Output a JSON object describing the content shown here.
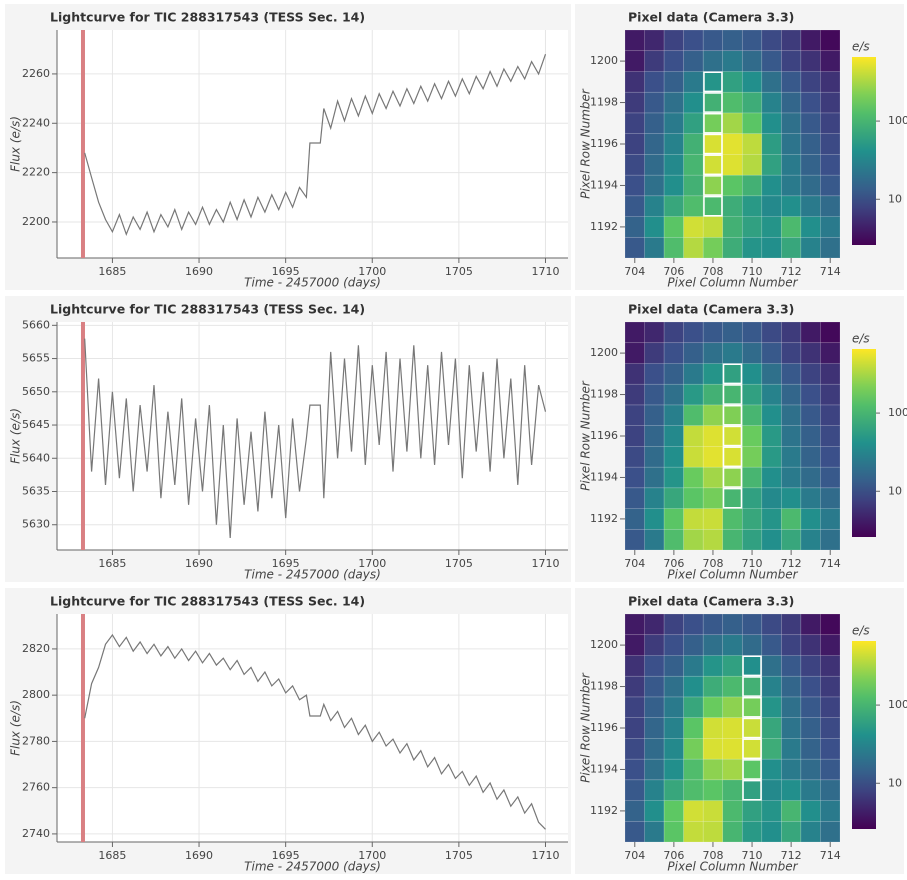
{
  "chart_data": [
    {
      "type": "line",
      "title": "Lightcurve for TIC 288317543 (TESS Sec. 14)",
      "xlabel": "Time - 2457000 (days)",
      "ylabel": "Flux (e/s)",
      "color": "#777777",
      "grid": true,
      "vline": 1683.3,
      "vline_color": "#d98083",
      "xlim": [
        1681.8,
        1711.3
      ],
      "xticks": [
        1685,
        1690,
        1695,
        1700,
        1705,
        1710
      ],
      "ylim": [
        2185.4,
        2277.8
      ],
      "yticks": [
        2200,
        2220,
        2240,
        2260
      ],
      "x": [
        1683.4,
        1683.8,
        1684.2,
        1684.6,
        1685.0,
        1685.4,
        1685.8,
        1686.2,
        1686.6,
        1687.0,
        1687.4,
        1687.8,
        1688.2,
        1688.6,
        1689.0,
        1689.4,
        1689.8,
        1690.2,
        1690.6,
        1691.0,
        1691.4,
        1691.8,
        1692.2,
        1692.6,
        1693.0,
        1693.4,
        1693.8,
        1694.2,
        1694.6,
        1695.0,
        1695.4,
        1695.8,
        1696.2,
        1696.4,
        1697.0,
        1697.2,
        1697.6,
        1698.0,
        1698.4,
        1698.8,
        1699.2,
        1699.6,
        1700.0,
        1700.4,
        1700.8,
        1701.2,
        1701.6,
        1702.0,
        1702.4,
        1702.8,
        1703.2,
        1703.6,
        1704.0,
        1704.4,
        1704.8,
        1705.2,
        1705.6,
        1706.0,
        1706.4,
        1706.8,
        1707.2,
        1707.6,
        1708.0,
        1708.4,
        1708.8,
        1709.2,
        1709.6,
        1710.0
      ],
      "values": [
        2228,
        2218,
        2208,
        2201,
        2196,
        2203,
        2195,
        2202,
        2197,
        2204,
        2196,
        2203,
        2198,
        2205,
        2197,
        2204,
        2199,
        2206,
        2199,
        2205,
        2200,
        2208,
        2201,
        2209,
        2202,
        2210,
        2204,
        2211,
        2205,
        2212,
        2206,
        2214,
        2210,
        2232,
        2232,
        2246,
        2238,
        2249,
        2241,
        2250,
        2243,
        2251,
        2244,
        2252,
        2246,
        2253,
        2247,
        2254,
        2248,
        2255,
        2249,
        2256,
        2250,
        2257,
        2251,
        2258,
        2252,
        2259,
        2254,
        2261,
        2255,
        2262,
        2257,
        2263,
        2258,
        2265,
        2260,
        2268
      ]
    },
    {
      "type": "heatmap",
      "title": "Pixel data (Camera 3.3)",
      "xlabel": "Pixel Column Number",
      "ylabel": "Pixel Row Number",
      "colorbar_label": "e/s",
      "colormap": "viridis",
      "log_color": true,
      "xlim": [
        703.5,
        714.5
      ],
      "xticks": [
        704,
        706,
        708,
        710,
        712,
        714
      ],
      "ylim": [
        1190.5,
        1201.5
      ],
      "yticks": [
        1192,
        1194,
        1196,
        1198,
        1200
      ],
      "clim": [
        2.6,
        660
      ],
      "cticks": [
        10,
        100
      ],
      "x": [
        704,
        705,
        706,
        707,
        708,
        709,
        710,
        711,
        712,
        713,
        714
      ],
      "y": [
        1191,
        1192,
        1193,
        1194,
        1195,
        1196,
        1197,
        1198,
        1199,
        1200,
        1201
      ],
      "z": [
        [
          12,
          25,
          120,
          350,
          200,
          80,
          45,
          40,
          70,
          30,
          20
        ],
        [
          15,
          40,
          150,
          450,
          400,
          90,
          60,
          45,
          110,
          40,
          25
        ],
        [
          12,
          30,
          70,
          120,
          110,
          80,
          50,
          35,
          40,
          25,
          18
        ],
        [
          10,
          20,
          40,
          90,
          250,
          150,
          90,
          40,
          25,
          18,
          12
        ],
        [
          9,
          18,
          35,
          100,
          450,
          500,
          350,
          60,
          25,
          15,
          10
        ],
        [
          8,
          16,
          30,
          90,
          480,
          520,
          380,
          55,
          22,
          14,
          9
        ],
        [
          8,
          14,
          25,
          60,
          200,
          300,
          150,
          40,
          20,
          12,
          8
        ],
        [
          7,
          12,
          20,
          40,
          90,
          120,
          80,
          30,
          16,
          10,
          7
        ],
        [
          6,
          10,
          14,
          25,
          45,
          60,
          40,
          20,
          12,
          8,
          6
        ],
        [
          4,
          7,
          10,
          14,
          20,
          25,
          18,
          12,
          8,
          6,
          4
        ],
        [
          4,
          5,
          8,
          10,
          12,
          14,
          12,
          9,
          7,
          4,
          3
        ]
      ],
      "aperture": {
        "x": 708,
        "y": [
          1193,
          1194,
          1195,
          1196,
          1197,
          1198,
          1199
        ]
      }
    },
    {
      "type": "line",
      "title": "Lightcurve for TIC 288317543 (TESS Sec. 14)",
      "xlabel": "Time - 2457000 (days)",
      "ylabel": "Flux (e/s)",
      "color": "#777777",
      "grid": true,
      "vline": 1683.3,
      "vline_color": "#d98083",
      "xlim": [
        1681.8,
        1711.3
      ],
      "xticks": [
        1685,
        1690,
        1695,
        1700,
        1705,
        1710
      ],
      "ylim": [
        5626.2,
        5660.5
      ],
      "yticks": [
        5630,
        5635,
        5640,
        5645,
        5650,
        5655,
        5660
      ],
      "x": [
        1683.4,
        1683.8,
        1684.2,
        1684.6,
        1685.0,
        1685.4,
        1685.8,
        1686.2,
        1686.6,
        1687.0,
        1687.4,
        1687.8,
        1688.2,
        1688.6,
        1689.0,
        1689.4,
        1689.8,
        1690.2,
        1690.6,
        1691.0,
        1691.4,
        1691.8,
        1692.2,
        1692.6,
        1693.0,
        1693.4,
        1693.8,
        1694.2,
        1694.6,
        1695.0,
        1695.4,
        1695.8,
        1696.2,
        1696.4,
        1697.0,
        1697.2,
        1697.6,
        1698.0,
        1698.4,
        1698.8,
        1699.2,
        1699.6,
        1700.0,
        1700.4,
        1700.8,
        1701.2,
        1701.6,
        1702.0,
        1702.4,
        1702.8,
        1703.2,
        1703.6,
        1704.0,
        1704.4,
        1704.8,
        1705.2,
        1705.6,
        1706.0,
        1706.4,
        1706.8,
        1707.2,
        1707.6,
        1708.0,
        1708.4,
        1708.8,
        1709.2,
        1709.6,
        1710.0
      ],
      "values": [
        5658,
        5638,
        5652,
        5636,
        5650,
        5637,
        5649,
        5635,
        5648,
        5638,
        5651,
        5634,
        5647,
        5636,
        5649,
        5633,
        5646,
        5635,
        5648,
        5630,
        5645,
        5628,
        5646,
        5633,
        5644,
        5632,
        5647,
        5634,
        5645,
        5631,
        5646,
        5635,
        5643,
        5648,
        5648,
        5634,
        5656,
        5640,
        5655,
        5641,
        5657,
        5639,
        5654,
        5642,
        5656,
        5638,
        5655,
        5641,
        5657,
        5640,
        5654,
        5639,
        5656,
        5642,
        5655,
        5637,
        5654,
        5641,
        5653,
        5638,
        5655,
        5640,
        5652,
        5636,
        5654,
        5639,
        5651,
        5647
      ]
    },
    {
      "type": "heatmap",
      "title": "Pixel data (Camera 3.3)",
      "xlabel": "Pixel Column Number",
      "ylabel": "Pixel Row Number",
      "colorbar_label": "e/s",
      "colormap": "viridis",
      "log_color": true,
      "xlim": [
        703.5,
        714.5
      ],
      "xticks": [
        704,
        706,
        708,
        710,
        712,
        714
      ],
      "ylim": [
        1190.5,
        1201.5
      ],
      "yticks": [
        1192,
        1194,
        1196,
        1198,
        1200
      ],
      "clim": [
        2.6,
        660
      ],
      "cticks": [
        10,
        100
      ],
      "x": [
        704,
        705,
        706,
        707,
        708,
        709,
        710,
        711,
        712,
        713,
        714
      ],
      "y": [
        1191,
        1192,
        1193,
        1194,
        1195,
        1196,
        1197,
        1198,
        1199,
        1200,
        1201
      ],
      "z": [
        [
          12,
          25,
          120,
          300,
          350,
          100,
          60,
          40,
          70,
          30,
          20
        ],
        [
          15,
          40,
          150,
          400,
          420,
          120,
          70,
          45,
          110,
          40,
          25
        ],
        [
          12,
          30,
          70,
          150,
          200,
          100,
          60,
          35,
          40,
          25,
          18
        ],
        [
          10,
          20,
          45,
          180,
          300,
          250,
          100,
          40,
          25,
          18,
          12
        ],
        [
          9,
          18,
          40,
          420,
          520,
          480,
          200,
          50,
          25,
          15,
          10
        ],
        [
          8,
          16,
          35,
          400,
          500,
          450,
          180,
          50,
          22,
          14,
          9
        ],
        [
          8,
          14,
          28,
          120,
          250,
          220,
          100,
          40,
          20,
          12,
          8
        ],
        [
          7,
          12,
          20,
          50,
          90,
          100,
          60,
          30,
          16,
          10,
          7
        ],
        [
          6,
          10,
          14,
          25,
          45,
          60,
          40,
          20,
          12,
          8,
          6
        ],
        [
          4,
          7,
          10,
          14,
          20,
          25,
          18,
          12,
          8,
          6,
          4
        ],
        [
          4,
          5,
          8,
          10,
          12,
          14,
          12,
          9,
          7,
          4,
          3
        ]
      ],
      "aperture": {
        "x": 709,
        "y": [
          1193,
          1194,
          1195,
          1196,
          1197,
          1198,
          1199
        ]
      }
    },
    {
      "type": "line",
      "title": "Lightcurve for TIC 288317543 (TESS Sec. 14)",
      "xlabel": "Time - 2457000 (days)",
      "ylabel": "Flux (e/s)",
      "color": "#777777",
      "grid": true,
      "vline": 1683.3,
      "vline_color": "#d98083",
      "xlim": [
        1681.8,
        1711.3
      ],
      "xticks": [
        1685,
        1690,
        1695,
        1700,
        1705,
        1710
      ],
      "ylim": [
        2736.5,
        2835.1
      ],
      "yticks": [
        2740,
        2760,
        2780,
        2800,
        2820
      ],
      "x": [
        1683.4,
        1683.8,
        1684.2,
        1684.6,
        1685.0,
        1685.4,
        1685.8,
        1686.2,
        1686.6,
        1687.0,
        1687.4,
        1687.8,
        1688.2,
        1688.6,
        1689.0,
        1689.4,
        1689.8,
        1690.2,
        1690.6,
        1691.0,
        1691.4,
        1691.8,
        1692.2,
        1692.6,
        1693.0,
        1693.4,
        1693.8,
        1694.2,
        1694.6,
        1695.0,
        1695.4,
        1695.8,
        1696.2,
        1696.4,
        1697.0,
        1697.2,
        1697.6,
        1698.0,
        1698.4,
        1698.8,
        1699.2,
        1699.6,
        1700.0,
        1700.4,
        1700.8,
        1701.2,
        1701.6,
        1702.0,
        1702.4,
        1702.8,
        1703.2,
        1703.6,
        1704.0,
        1704.4,
        1704.8,
        1705.2,
        1705.6,
        1706.0,
        1706.4,
        1706.8,
        1707.2,
        1707.6,
        1708.0,
        1708.4,
        1708.8,
        1709.2,
        1709.6,
        1710.0
      ],
      "values": [
        2790,
        2805,
        2812,
        2822,
        2826,
        2821,
        2825,
        2819,
        2823,
        2818,
        2822,
        2817,
        2821,
        2816,
        2820,
        2815,
        2819,
        2814,
        2818,
        2813,
        2816,
        2811,
        2815,
        2809,
        2812,
        2806,
        2810,
        2804,
        2807,
        2801,
        2804,
        2798,
        2800,
        2791,
        2791,
        2796,
        2789,
        2793,
        2786,
        2790,
        2783,
        2787,
        2780,
        2784,
        2778,
        2781,
        2775,
        2779,
        2772,
        2776,
        2769,
        2773,
        2766,
        2770,
        2764,
        2767,
        2761,
        2765,
        2758,
        2762,
        2755,
        2759,
        2752,
        2756,
        2749,
        2753,
        2745,
        2742
      ]
    },
    {
      "type": "heatmap",
      "title": "Pixel data (Camera 3.3)",
      "xlabel": "Pixel Column Number",
      "ylabel": "Pixel Row Number",
      "colorbar_label": "e/s",
      "colormap": "viridis",
      "log_color": true,
      "xlim": [
        703.5,
        714.5
      ],
      "xticks": [
        704,
        706,
        708,
        710,
        712,
        714
      ],
      "ylim": [
        1190.5,
        1201.5
      ],
      "yticks": [
        1192,
        1194,
        1196,
        1198,
        1200
      ],
      "clim": [
        2.6,
        660
      ],
      "cticks": [
        10,
        100
      ],
      "x": [
        704,
        705,
        706,
        707,
        708,
        709,
        710,
        711,
        712,
        713,
        714
      ],
      "y": [
        1191,
        1192,
        1193,
        1194,
        1195,
        1196,
        1197,
        1198,
        1199,
        1200,
        1201
      ],
      "z": [
        [
          12,
          25,
          150,
          400,
          380,
          100,
          50,
          40,
          70,
          30,
          20
        ],
        [
          15,
          40,
          160,
          450,
          420,
          110,
          60,
          45,
          100,
          40,
          25
        ],
        [
          12,
          30,
          70,
          120,
          150,
          100,
          60,
          35,
          40,
          25,
          18
        ],
        [
          10,
          20,
          40,
          120,
          250,
          300,
          150,
          40,
          25,
          18,
          12
        ],
        [
          9,
          18,
          35,
          200,
          480,
          500,
          450,
          80,
          25,
          15,
          10
        ],
        [
          8,
          16,
          30,
          150,
          450,
          480,
          420,
          70,
          22,
          14,
          9
        ],
        [
          8,
          14,
          25,
          70,
          180,
          250,
          200,
          45,
          20,
          12,
          8
        ],
        [
          7,
          12,
          20,
          40,
          80,
          110,
          90,
          30,
          16,
          10,
          7
        ],
        [
          6,
          10,
          14,
          25,
          45,
          60,
          40,
          20,
          12,
          8,
          6
        ],
        [
          4,
          7,
          10,
          14,
          20,
          25,
          18,
          12,
          8,
          6,
          4
        ],
        [
          4,
          5,
          8,
          10,
          12,
          14,
          12,
          9,
          7,
          4,
          3
        ]
      ],
      "aperture": {
        "x": 710,
        "y": [
          1193,
          1194,
          1195,
          1196,
          1197,
          1198,
          1199
        ]
      }
    }
  ]
}
